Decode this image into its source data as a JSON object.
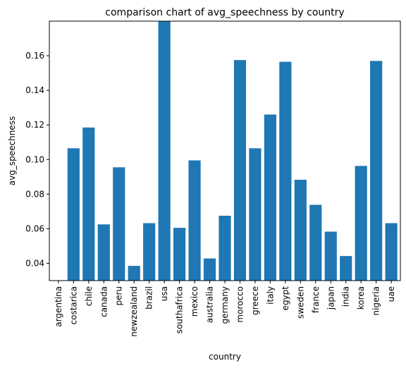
{
  "chart_data": {
    "type": "bar",
    "title": "comparison chart of avg_speechness by country",
    "xlabel": "country",
    "ylabel": "avg_speechness",
    "ylim": [
      0.03,
      0.18
    ],
    "yticks": [
      0.04,
      0.06,
      0.08,
      0.1,
      0.12,
      0.14,
      0.16
    ],
    "ytick_labels": [
      "0.04",
      "0.06",
      "0.08",
      "0.10",
      "0.12",
      "0.14",
      "0.16"
    ],
    "bar_color": "#1f77b4",
    "grid": false,
    "categories": [
      "argentina",
      "costarica",
      "chile",
      "canada",
      "peru",
      "newzealand",
      "brazil",
      "usa",
      "southafrica",
      "mexico",
      "australia",
      "germany",
      "morocco",
      "greece",
      "italy",
      "egypt",
      "sweden",
      "france",
      "japan",
      "india",
      "korea",
      "nigeria",
      "uae"
    ],
    "values": [
      0.029,
      0.1065,
      0.1185,
      0.0625,
      0.0955,
      0.0385,
      0.0632,
      0.181,
      0.0605,
      0.0995,
      0.0428,
      0.0675,
      0.1575,
      0.1065,
      0.126,
      0.1565,
      0.0883,
      0.0738,
      0.0583,
      0.0442,
      0.0963,
      0.157,
      0.0632
    ]
  }
}
